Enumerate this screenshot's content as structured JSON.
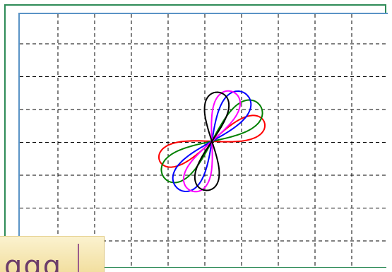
{
  "chart_data": {
    "type": "line",
    "title": "",
    "xlabel": "",
    "ylabel": "",
    "grid": true,
    "x_gridlines": 10,
    "y_gridlines": 7,
    "series": [
      {
        "color": "#ff0000",
        "shape": "ellipse",
        "angle_deg": 20,
        "long_axis": 158,
        "short_axis": 18
      },
      {
        "color": "#008000",
        "shape": "ellipse",
        "angle_deg": 37,
        "long_axis": 170,
        "short_axis": 22
      },
      {
        "color": "#0000ff",
        "shape": "ellipse",
        "angle_deg": 55,
        "long_axis": 165,
        "short_axis": 22
      },
      {
        "color": "#ff00ff",
        "shape": "ellipse",
        "angle_deg": 67,
        "long_axis": 152,
        "short_axis": 20
      },
      {
        "color": "#000000",
        "shape": "ellipse",
        "angle_deg": 82,
        "long_axis": 140,
        "short_axis": 19
      }
    ]
  },
  "corner_widget": {
    "glyphs": "ɑɑɑ"
  }
}
